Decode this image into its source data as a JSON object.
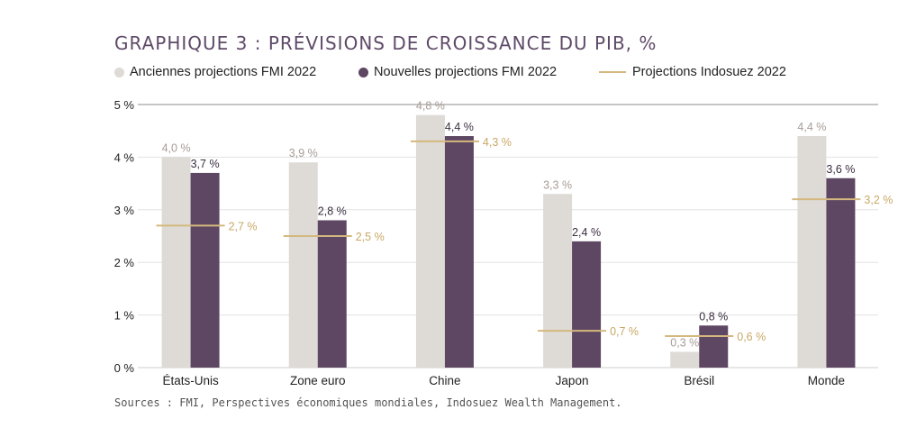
{
  "chart_data": {
    "type": "bar",
    "title": "GRAPHIQUE 3 : PRÉVISIONS DE CROISSANCE DU PIB, %",
    "categories": [
      "États-Unis",
      "Zone euro",
      "Chine",
      "Japon",
      "Brésil",
      "Monde"
    ],
    "series": [
      {
        "name": "Anciennes projections FMI 2022",
        "kind": "bar",
        "color": "#dedad6",
        "values": [
          4.0,
          3.9,
          4.8,
          3.3,
          0.3,
          4.4
        ],
        "labels": [
          "4,0 %",
          "3,9 %",
          "4,8 %",
          "3,3 %",
          "0,3 %",
          "4,4 %"
        ]
      },
      {
        "name": "Nouvelles projections FMI 2022",
        "kind": "bar",
        "color": "#5e4763",
        "values": [
          3.7,
          2.8,
          4.4,
          2.4,
          0.8,
          3.6
        ],
        "labels": [
          "3,7 %",
          "2,8 %",
          "4,4 %",
          "2,4 %",
          "0,8 %",
          "3,6 %"
        ]
      },
      {
        "name": "Projections Indosuez 2022",
        "kind": "line-marker",
        "color": "#d4b87e",
        "values": [
          2.7,
          2.5,
          4.3,
          0.7,
          0.6,
          3.2
        ],
        "labels": [
          "2,7 %",
          "2,5 %",
          "4,3 %",
          "0,7 %",
          "0,6 %",
          "3,2 %"
        ]
      }
    ],
    "yticks": [
      "0 %",
      "1 %",
      "2 %",
      "3 %",
      "4 %",
      "5 %"
    ],
    "ylim": [
      0,
      5
    ],
    "grid": true,
    "legend": "top"
  },
  "source": "Sources : FMI, Perspectives économiques mondiales, Indosuez Wealth Management."
}
